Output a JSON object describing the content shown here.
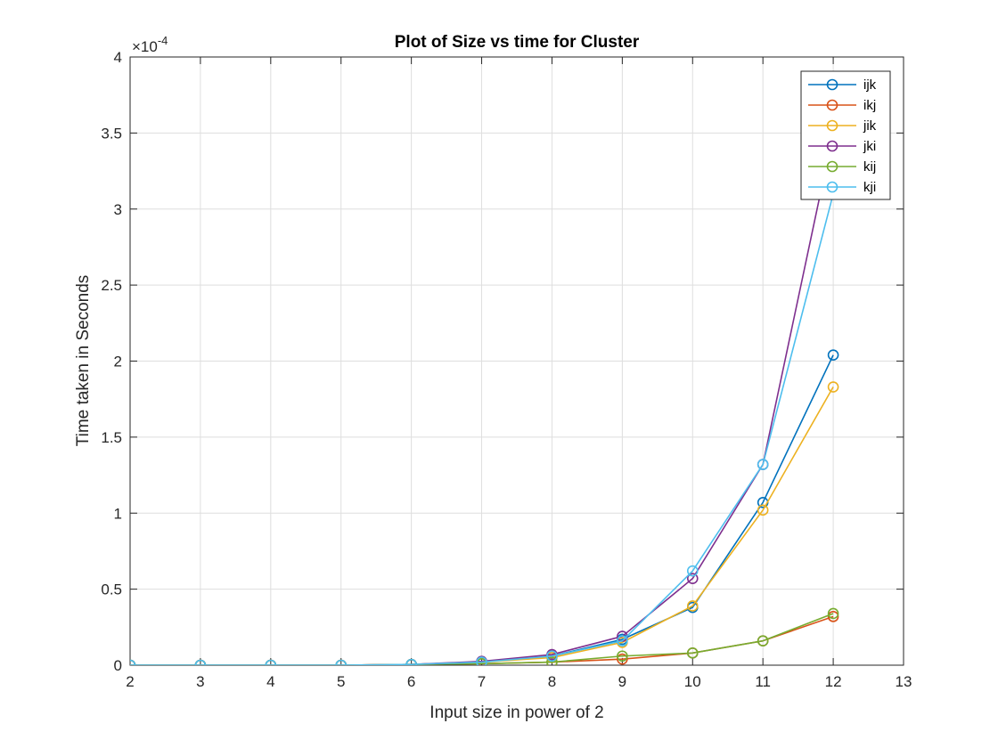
{
  "chart_data": {
    "type": "line",
    "title": "Plot of Size vs time for Cluster",
    "xlabel": "Input size in power of 2",
    "ylabel": "Time taken in Seconds",
    "y_exponent_label": "×10",
    "y_exponent_power": "-4",
    "xlim": [
      2,
      13
    ],
    "ylim": [
      0,
      4
    ],
    "xticks": [
      2,
      3,
      4,
      5,
      6,
      7,
      8,
      9,
      10,
      11,
      12,
      13
    ],
    "yticks": [
      0,
      0.5,
      1,
      1.5,
      2,
      2.5,
      3,
      3.5,
      4
    ],
    "ytick_labels": [
      "0",
      "0.5",
      "1",
      "1.5",
      "2",
      "2.5",
      "3",
      "3.5",
      "4"
    ],
    "grid": true,
    "marker": "circle",
    "legend_position": "top-right",
    "x": [
      2,
      3,
      4,
      5,
      6,
      7,
      8,
      9,
      10,
      11,
      12
    ],
    "series": [
      {
        "name": "ijk",
        "color": "#0072BD",
        "values": [
          0.0,
          0.0,
          0.0,
          0.0,
          0.005,
          0.02,
          0.06,
          0.17,
          0.38,
          1.07,
          2.04
        ]
      },
      {
        "name": "ikj",
        "color": "#D95319",
        "values": [
          0.0,
          0.0,
          0.0,
          0.0,
          0.005,
          0.01,
          0.02,
          0.04,
          0.08,
          0.16,
          0.32
        ]
      },
      {
        "name": "jik",
        "color": "#EDB120",
        "values": [
          0.0,
          0.0,
          0.0,
          0.0,
          0.005,
          0.02,
          0.05,
          0.15,
          0.39,
          1.02,
          1.83
        ]
      },
      {
        "name": "jki",
        "color": "#7E2F8E",
        "values": [
          0.0,
          0.0,
          0.0,
          0.0,
          0.005,
          0.025,
          0.07,
          0.19,
          0.57,
          1.32,
          3.5
        ]
      },
      {
        "name": "kij",
        "color": "#77AC30",
        "values": [
          0.0,
          0.0,
          0.0,
          0.0,
          0.005,
          0.01,
          0.02,
          0.06,
          0.08,
          0.16,
          0.34
        ]
      },
      {
        "name": "kji",
        "color": "#4DBEEE",
        "values": [
          0.0,
          0.0,
          0.0,
          0.0,
          0.005,
          0.02,
          0.06,
          0.16,
          0.62,
          1.32,
          3.1
        ]
      }
    ]
  }
}
